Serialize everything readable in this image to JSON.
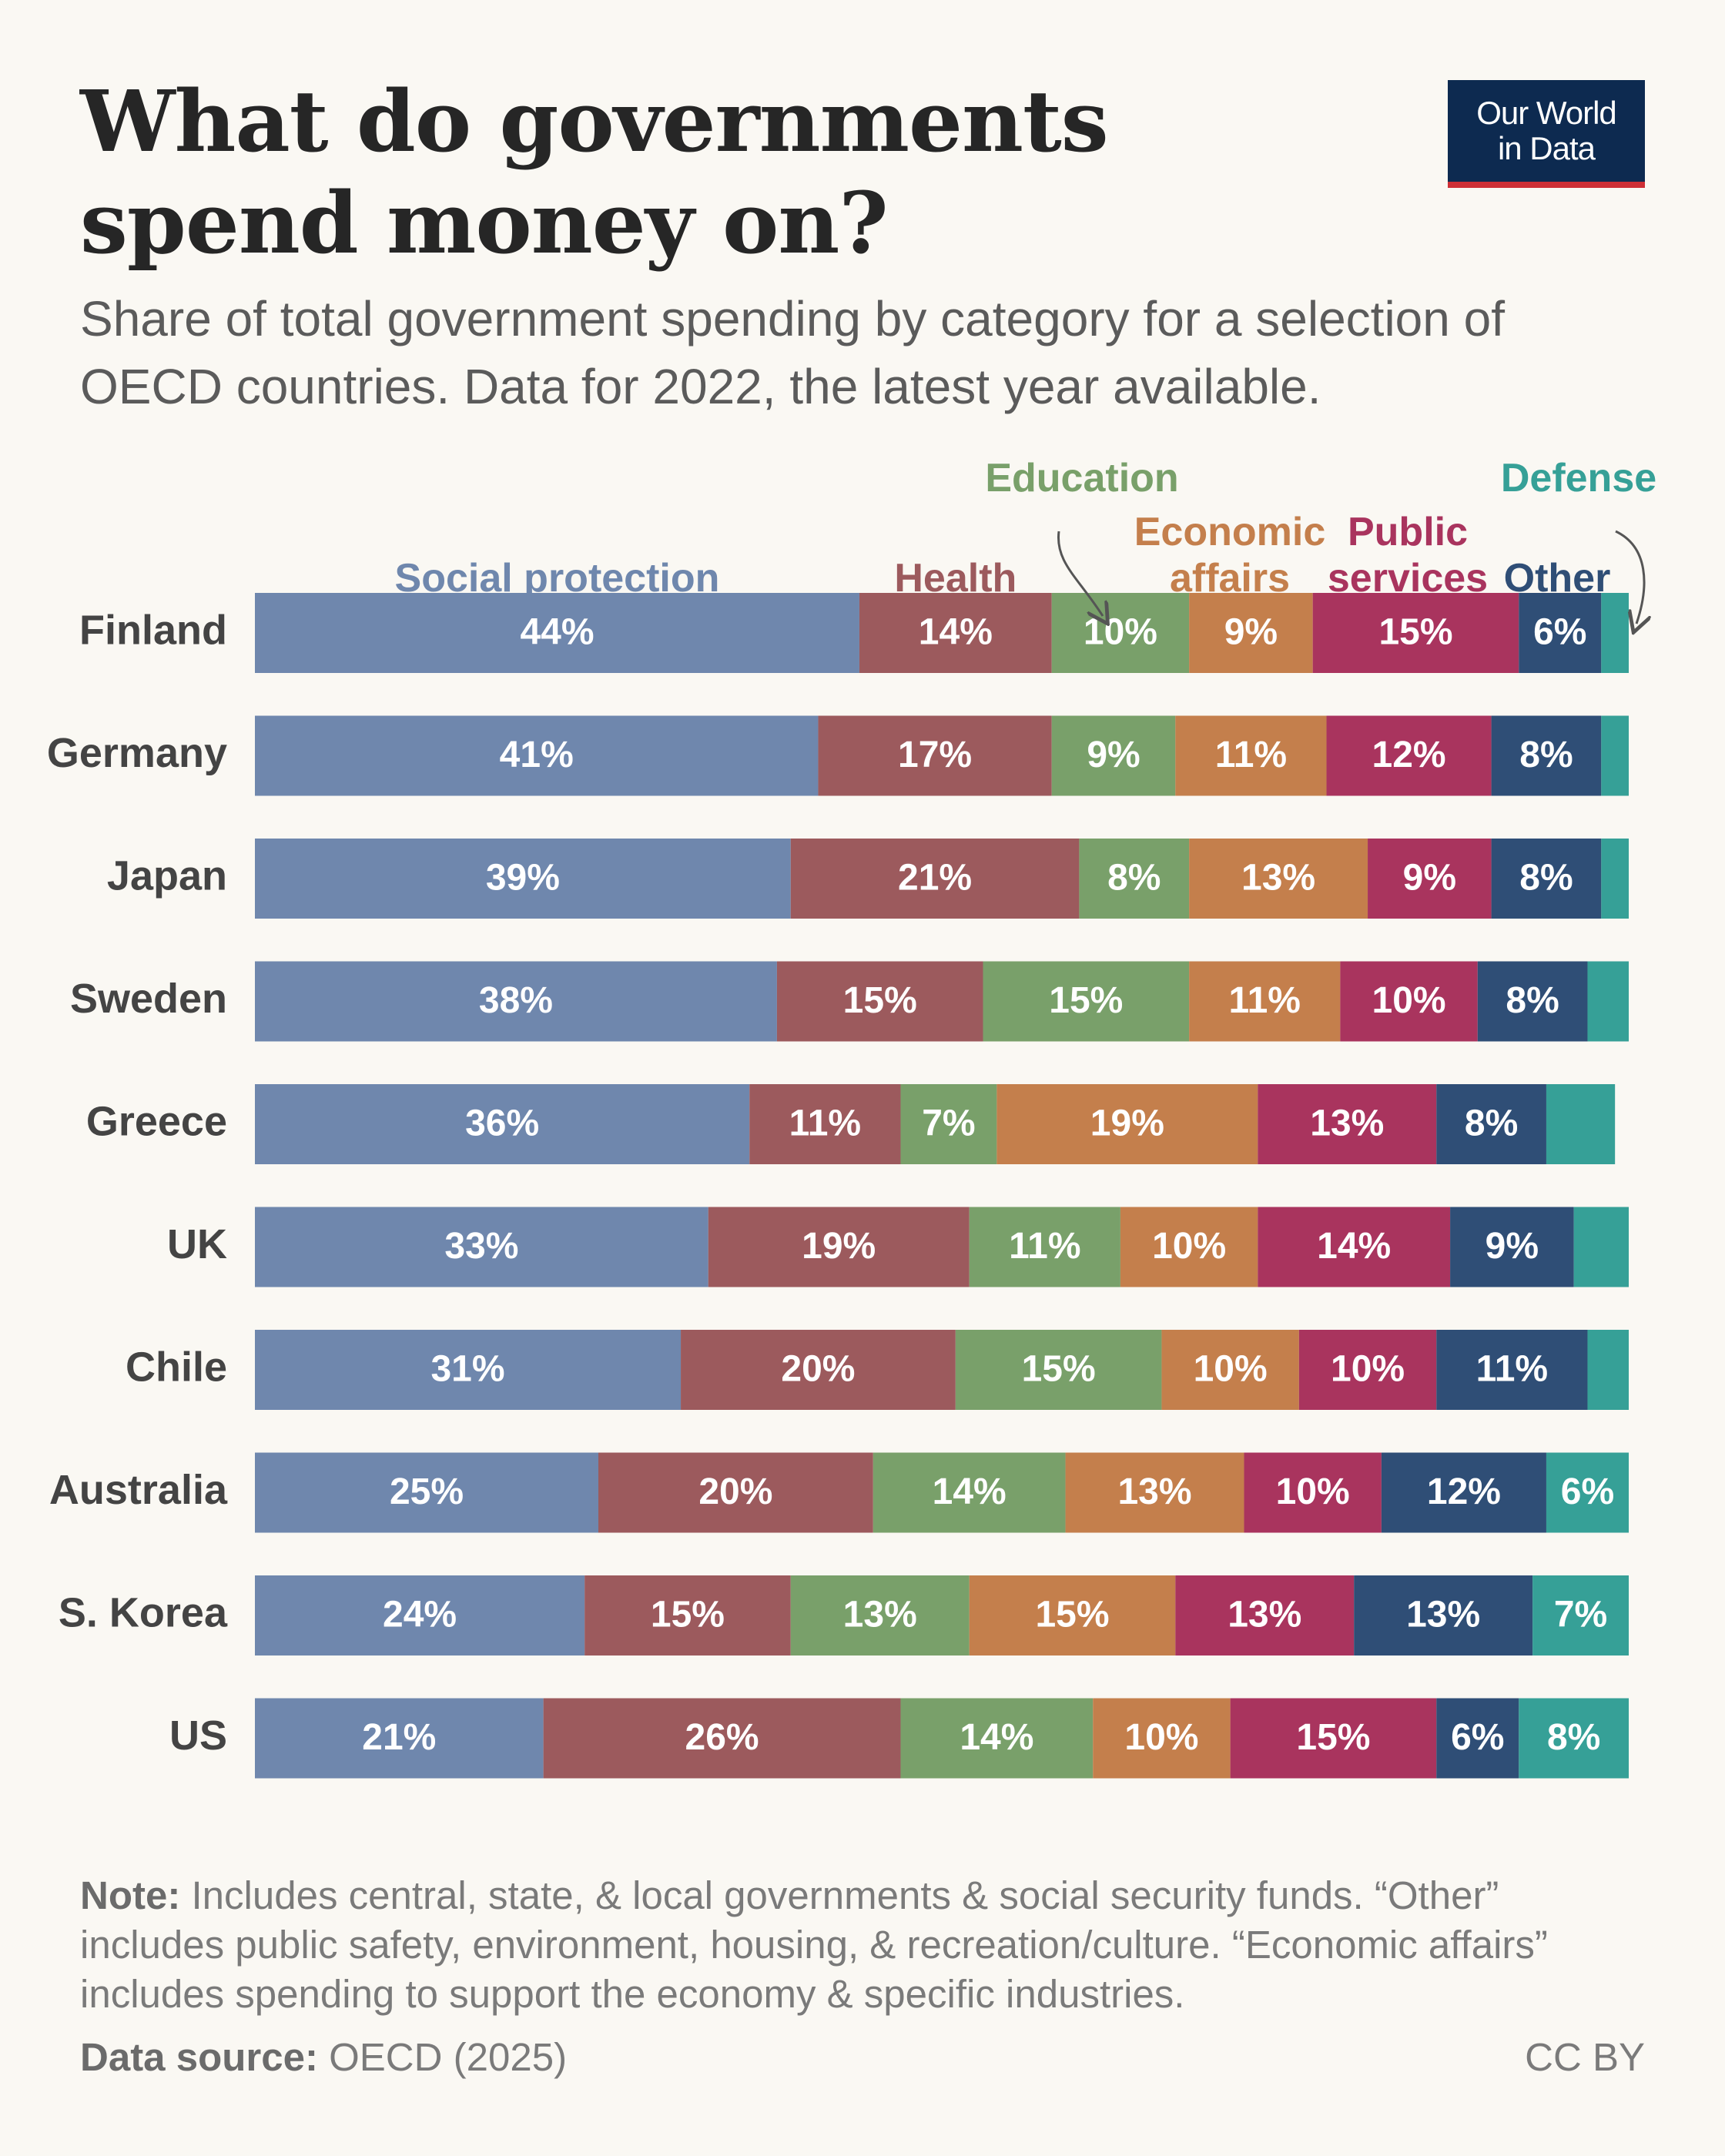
{
  "header": {
    "title": "What do governments spend money on?",
    "subtitle": "Share of total government spending by category for a selection of OECD countries. Data for 2022, the latest year available."
  },
  "logo": {
    "line1": "Our World",
    "line2": "in Data"
  },
  "chart_data": {
    "type": "bar",
    "orientation": "horizontal",
    "stacked": true,
    "title": "What do governments spend money on?",
    "subtitle": "Share of total government spending by category for a selection of OECD countries. Data for 2022, the latest year available.",
    "xlim": [
      0,
      100
    ],
    "grid": false,
    "legend": "top, as labels above each segment column",
    "categories": [
      "Finland",
      "Germany",
      "Japan",
      "Sweden",
      "Greece",
      "UK",
      "Chile",
      "Australia",
      "S. Korea",
      "US"
    ],
    "series": [
      {
        "name": "Social protection",
        "legend_lines": [
          "Social protection"
        ],
        "color": "#6f87ad",
        "values": [
          44,
          41,
          39,
          38,
          36,
          33,
          31,
          25,
          24,
          21
        ]
      },
      {
        "name": "Health",
        "legend_lines": [
          "Health"
        ],
        "color": "#9c5a5d",
        "values": [
          14,
          17,
          21,
          15,
          11,
          19,
          20,
          20,
          15,
          26
        ]
      },
      {
        "name": "Education",
        "legend_lines": [
          "Education"
        ],
        "color": "#79a06a",
        "values": [
          10,
          9,
          8,
          15,
          7,
          11,
          15,
          14,
          13,
          14
        ]
      },
      {
        "name": "Economic affairs",
        "legend_lines": [
          "Economic",
          "affairs"
        ],
        "color": "#c47f4c",
        "values": [
          9,
          11,
          13,
          11,
          19,
          10,
          10,
          13,
          15,
          10
        ]
      },
      {
        "name": "Public services",
        "legend_lines": [
          "Public",
          "services"
        ],
        "color": "#a9345e",
        "values": [
          15,
          12,
          9,
          10,
          13,
          14,
          10,
          10,
          13,
          15
        ]
      },
      {
        "name": "Other",
        "legend_lines": [
          "Other"
        ],
        "color": "#2f4e76",
        "values": [
          6,
          8,
          8,
          8,
          8,
          9,
          11,
          12,
          13,
          6
        ]
      },
      {
        "name": "Defense",
        "legend_lines": [
          "Defense"
        ],
        "color": "#36a097",
        "values": [
          2,
          2,
          2,
          3,
          5,
          4,
          3,
          6,
          7,
          8
        ]
      }
    ],
    "data_labels": [
      [
        "44%",
        "14%",
        "10%",
        "9%",
        "15%",
        "6%",
        ""
      ],
      [
        "41%",
        "17%",
        "9%",
        "11%",
        "12%",
        "8%",
        ""
      ],
      [
        "39%",
        "21%",
        "8%",
        "13%",
        "9%",
        "8%",
        ""
      ],
      [
        "38%",
        "15%",
        "15%",
        "11%",
        "10%",
        "8%",
        ""
      ],
      [
        "36%",
        "11%",
        "7%",
        "19%",
        "13%",
        "8%",
        ""
      ],
      [
        "33%",
        "19%",
        "11%",
        "10%",
        "14%",
        "9%",
        ""
      ],
      [
        "31%",
        "20%",
        "15%",
        "10%",
        "10%",
        "11%",
        ""
      ],
      [
        "25%",
        "20%",
        "14%",
        "13%",
        "10%",
        "12%",
        "6%"
      ],
      [
        "24%",
        "15%",
        "13%",
        "15%",
        "13%",
        "13%",
        "7%"
      ],
      [
        "21%",
        "26%",
        "14%",
        "10%",
        "15%",
        "6%",
        "8%"
      ]
    ]
  },
  "footer": {
    "note_label": "Note:",
    "note_text": " Includes central, state, & local governments & social security funds. “Other” includes public safety, environment, housing, & recreation/culture. “Economic affairs” includes spending to support the economy & specific industries.",
    "source_label": "Data source:",
    "source_text": " OECD (2025)",
    "license": "CC BY"
  }
}
